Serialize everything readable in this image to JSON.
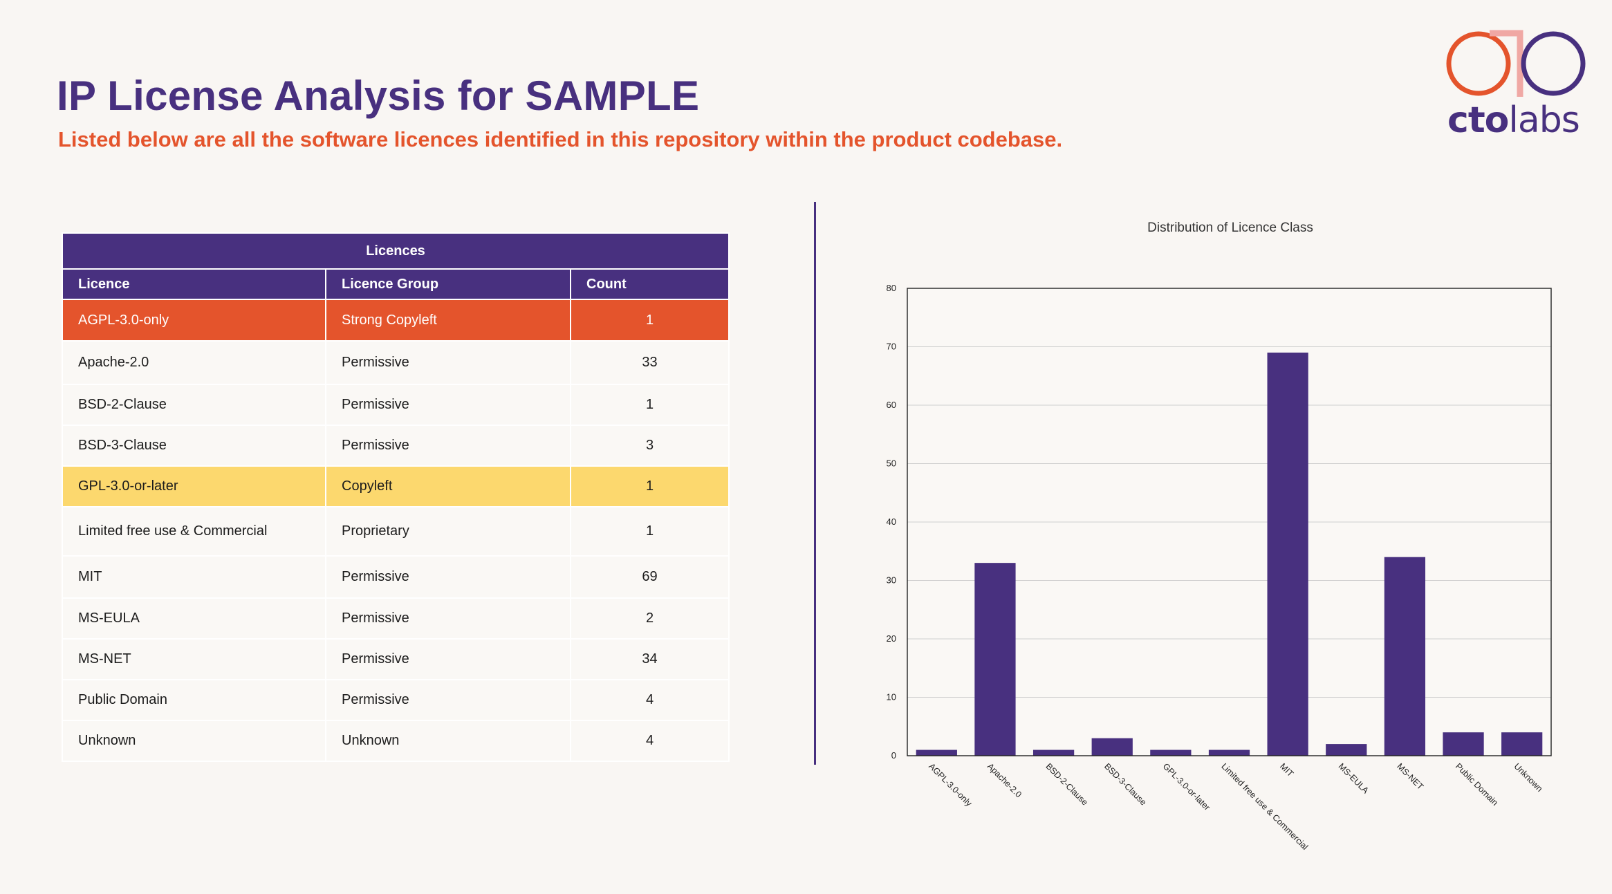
{
  "header": {
    "title": "IP License Analysis for SAMPLE",
    "subtitle": "Listed below are all the software licences identified in this repository within the product codebase."
  },
  "logo": {
    "name": "ctolabs-logo",
    "text_bold": "cto",
    "text_light": "labs",
    "colors": [
      "#e4542c",
      "#f0a8a4",
      "#48307f"
    ]
  },
  "colors": {
    "brand_purple": "#48307f",
    "accent_orange": "#e4542c",
    "highlight_yellow": "#fcd86e",
    "background": "#f9f6f3"
  },
  "table": {
    "caption": "Licences",
    "headers": [
      "Licence",
      "Licence Group",
      "Count"
    ],
    "rows": [
      {
        "licence": "AGPL-3.0-only",
        "group": "Strong Copyleft",
        "count": "1",
        "highlight": "red"
      },
      {
        "licence": "Apache-2.0",
        "group": "Permissive",
        "count": "33",
        "highlight": ""
      },
      {
        "licence": "BSD-2-Clause",
        "group": "Permissive",
        "count": "1",
        "highlight": ""
      },
      {
        "licence": "BSD-3-Clause",
        "group": "Permissive",
        "count": "3",
        "highlight": ""
      },
      {
        "licence": "GPL-3.0-or-later",
        "group": "Copyleft",
        "count": "1",
        "highlight": "yellow"
      },
      {
        "licence": "Limited free use & Commercial",
        "group": "Proprietary",
        "count": "1",
        "highlight": ""
      },
      {
        "licence": "MIT",
        "group": "Permissive",
        "count": "69",
        "highlight": ""
      },
      {
        "licence": "MS-EULA",
        "group": "Permissive",
        "count": "2",
        "highlight": ""
      },
      {
        "licence": "MS-NET",
        "group": "Permissive",
        "count": "34",
        "highlight": ""
      },
      {
        "licence": "Public Domain",
        "group": "Permissive",
        "count": "4",
        "highlight": ""
      },
      {
        "licence": "Unknown",
        "group": "Unknown",
        "count": "4",
        "highlight": ""
      }
    ]
  },
  "chart_data": {
    "type": "bar",
    "title": "Distribution of Licence Class",
    "xlabel": "",
    "ylabel": "",
    "categories": [
      "AGPL-3.0-only",
      "Apache-2.0",
      "BSD-2-Clause",
      "BSD-3-Clause",
      "GPL-3.0-or-later",
      "Limited free use & Commercial",
      "MIT",
      "MS-EULA",
      "MS-NET",
      "Public Domain",
      "Unknown"
    ],
    "values": [
      1,
      33,
      1,
      3,
      1,
      1,
      69,
      2,
      34,
      4,
      4
    ],
    "ylim": [
      0,
      80
    ],
    "yticks": [
      0,
      10,
      20,
      30,
      40,
      50,
      60,
      70,
      80
    ],
    "grid": true,
    "legend": "none",
    "bar_color": "#48307f"
  }
}
